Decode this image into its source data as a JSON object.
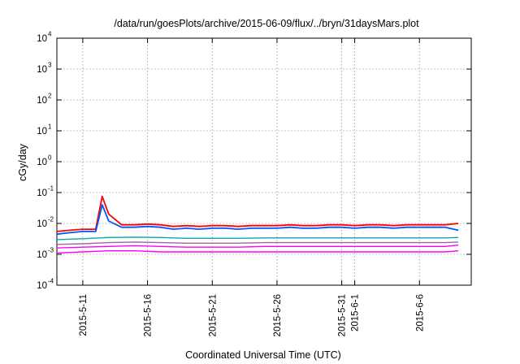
{
  "chart_data": {
    "type": "line",
    "title": "/data/run/goesPlots/archive/2015-06-09/flux/../bryn/31daysMars.plot",
    "xlabel": "Coordinated Universal Time (UTC)",
    "ylabel": "cGy/day",
    "yscale": "log",
    "ylim": [
      0.0001,
      10000
    ],
    "xlim": [
      "2015-05-09",
      "2015-06-10"
    ],
    "grid": true,
    "legend": "none",
    "y_ticks": [
      {
        "base": "10",
        "exp": "-4"
      },
      {
        "base": "10",
        "exp": "-3"
      },
      {
        "base": "10",
        "exp": "-2"
      },
      {
        "base": "10",
        "exp": "-1"
      },
      {
        "base": "10",
        "exp": "0"
      },
      {
        "base": "10",
        "exp": "1"
      },
      {
        "base": "10",
        "exp": "2"
      },
      {
        "base": "10",
        "exp": "3"
      },
      {
        "base": "10",
        "exp": "4"
      }
    ],
    "x_ticks": [
      "2015-5-11",
      "2015-5-16",
      "2015-5-21",
      "2015-5-26",
      "2015-5-31",
      "2015-6-1",
      "2015-6-6"
    ],
    "series_colors": [
      "#ff0000",
      "#0055ff",
      "#00aaaa",
      "#9a6a9a",
      "#ff00ff",
      "#ff00ff"
    ],
    "series": [
      {
        "color": "#ff0000",
        "x": [
          "2015-05-09",
          "2015-05-10",
          "2015-05-11",
          "2015-05-12",
          "2015-05-12.5",
          "2015-05-13",
          "2015-05-14",
          "2015-05-15",
          "2015-05-16",
          "2015-05-17",
          "2015-05-18",
          "2015-05-19",
          "2015-05-20",
          "2015-05-21",
          "2015-05-22",
          "2015-05-23",
          "2015-05-24",
          "2015-05-25",
          "2015-05-26",
          "2015-05-27",
          "2015-05-28",
          "2015-05-29",
          "2015-05-30",
          "2015-05-31",
          "2015-06-01",
          "2015-06-02",
          "2015-06-03",
          "2015-06-04",
          "2015-06-05",
          "2015-06-06",
          "2015-06-07",
          "2015-06-08",
          "2015-06-09"
        ],
        "values": [
          0.0055,
          0.006,
          0.0065,
          0.0065,
          0.075,
          0.02,
          0.009,
          0.009,
          0.0095,
          0.009,
          0.008,
          0.0085,
          0.008,
          0.0085,
          0.0085,
          0.008,
          0.0085,
          0.0085,
          0.0085,
          0.009,
          0.0085,
          0.0085,
          0.009,
          0.009,
          0.0085,
          0.009,
          0.009,
          0.0085,
          0.009,
          0.009,
          0.009,
          0.009,
          0.01
        ]
      },
      {
        "color": "#0055ff",
        "x": [
          "2015-05-09",
          "2015-05-10",
          "2015-05-11",
          "2015-05-12",
          "2015-05-12.5",
          "2015-05-13",
          "2015-05-14",
          "2015-05-15",
          "2015-05-16",
          "2015-05-17",
          "2015-05-18",
          "2015-05-19",
          "2015-05-20",
          "2015-05-21",
          "2015-05-22",
          "2015-05-23",
          "2015-05-24",
          "2015-05-25",
          "2015-05-26",
          "2015-05-27",
          "2015-05-28",
          "2015-05-29",
          "2015-05-30",
          "2015-05-31",
          "2015-06-01",
          "2015-06-02",
          "2015-06-03",
          "2015-06-04",
          "2015-06-05",
          "2015-06-06",
          "2015-06-07",
          "2015-06-08",
          "2015-06-09"
        ],
        "values": [
          0.0045,
          0.005,
          0.0055,
          0.0055,
          0.04,
          0.012,
          0.0075,
          0.0075,
          0.008,
          0.0075,
          0.0065,
          0.007,
          0.0065,
          0.007,
          0.007,
          0.0065,
          0.007,
          0.007,
          0.007,
          0.0075,
          0.007,
          0.007,
          0.0075,
          0.0075,
          0.007,
          0.0075,
          0.0075,
          0.007,
          0.0075,
          0.0075,
          0.0075,
          0.0075,
          0.006
        ]
      },
      {
        "color": "#00aaaa",
        "x": [
          "2015-05-09",
          "2015-05-11",
          "2015-05-13",
          "2015-05-15",
          "2015-05-17",
          "2015-05-19",
          "2015-05-21",
          "2015-05-23",
          "2015-05-25",
          "2015-05-27",
          "2015-05-29",
          "2015-05-31",
          "2015-06-02",
          "2015-06-04",
          "2015-06-06",
          "2015-06-08",
          "2015-06-09"
        ],
        "values": [
          0.003,
          0.0032,
          0.0035,
          0.0036,
          0.0035,
          0.0033,
          0.0033,
          0.0033,
          0.0034,
          0.0034,
          0.0034,
          0.0034,
          0.0034,
          0.0034,
          0.0034,
          0.0034,
          0.0035
        ]
      },
      {
        "color": "#9a6a9a",
        "x": [
          "2015-05-09",
          "2015-05-11",
          "2015-05-13",
          "2015-05-15",
          "2015-05-17",
          "2015-05-19",
          "2015-05-21",
          "2015-05-23",
          "2015-05-25",
          "2015-05-27",
          "2015-05-29",
          "2015-05-31",
          "2015-06-02",
          "2015-06-04",
          "2015-06-06",
          "2015-06-08",
          "2015-06-09"
        ],
        "values": [
          0.0021,
          0.0022,
          0.0024,
          0.0025,
          0.0024,
          0.0023,
          0.0023,
          0.0023,
          0.0024,
          0.0024,
          0.0024,
          0.0024,
          0.0024,
          0.0024,
          0.0024,
          0.0024,
          0.0025
        ]
      },
      {
        "color": "#ff00ff",
        "x": [
          "2015-05-09",
          "2015-05-11",
          "2015-05-13",
          "2015-05-15",
          "2015-05-17",
          "2015-05-19",
          "2015-05-21",
          "2015-05-23",
          "2015-05-25",
          "2015-05-27",
          "2015-05-29",
          "2015-05-31",
          "2015-06-02",
          "2015-06-04",
          "2015-06-06",
          "2015-06-08",
          "2015-06-09"
        ],
        "values": [
          0.0016,
          0.0017,
          0.0018,
          0.0019,
          0.0018,
          0.0017,
          0.0017,
          0.0017,
          0.0018,
          0.0018,
          0.0018,
          0.0018,
          0.0018,
          0.0018,
          0.0018,
          0.0018,
          0.002
        ]
      },
      {
        "color": "#ff00ff",
        "x": [
          "2015-05-09",
          "2015-05-11",
          "2015-05-13",
          "2015-05-15",
          "2015-05-17",
          "2015-05-19",
          "2015-05-21",
          "2015-05-23",
          "2015-05-25",
          "2015-05-27",
          "2015-05-29",
          "2015-05-31",
          "2015-06-02",
          "2015-06-04",
          "2015-06-06",
          "2015-06-08",
          "2015-06-09"
        ],
        "values": [
          0.0011,
          0.0012,
          0.0013,
          0.0013,
          0.0012,
          0.0012,
          0.0012,
          0.0012,
          0.0012,
          0.0012,
          0.0012,
          0.0012,
          0.0012,
          0.0012,
          0.0012,
          0.0012,
          0.0013
        ]
      }
    ]
  }
}
